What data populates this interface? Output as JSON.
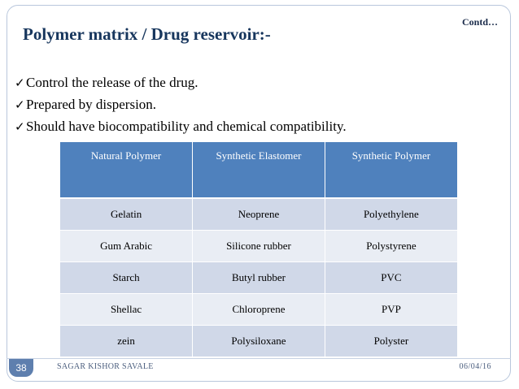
{
  "slide": {
    "contd": "Contd…",
    "title": "Polymer matrix / Drug reservoir:-",
    "bullet_mark": "✓",
    "bullets": [
      "Control the release of the drug.",
      "Prepared by dispersion.",
      "Should have biocompatibility and chemical compatibility."
    ]
  },
  "table": {
    "headers": [
      "Natural Polymer",
      "Synthetic Elastomer",
      "Synthetic Polymer"
    ],
    "rows": [
      [
        "Gelatin",
        "Neoprene",
        "Polyethylene"
      ],
      [
        "Gum Arabic",
        "Silicone rubber",
        "Polystyrene"
      ],
      [
        "Starch",
        "Butyl rubber",
        "PVC"
      ],
      [
        "Shellac",
        "Chloroprene",
        "PVP"
      ],
      [
        "zein",
        "Polysiloxane",
        "Polyster"
      ]
    ]
  },
  "footer": {
    "page_number": "38",
    "author": "SAGAR KISHOR SAVALE",
    "date": "06/04/16"
  },
  "colors": {
    "header_fill": "#4f81bd",
    "row_band_dark": "#d0d8e8",
    "row_band_light": "#e9edf4",
    "title_color": "#17365d"
  }
}
